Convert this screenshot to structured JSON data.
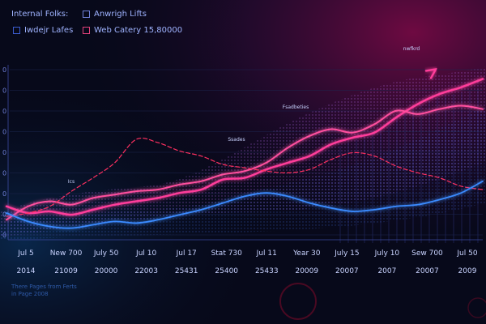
{
  "legend": [
    {
      "label": "Internal Folks:",
      "color": "#8fa6ff"
    },
    {
      "label": "Anwrigh Lifts",
      "color": "#8fa6ff"
    },
    {
      "label": "Iwdejr Lafes",
      "color": "#3c5cd0"
    },
    {
      "label": "Web Catery 15,80000",
      "color": "#e0407a"
    }
  ],
  "annotations": [
    "nwfkrd",
    "Fsadbeties",
    "Ssades",
    "Ics"
  ],
  "footnote": [
    "There Pages from Ferts",
    "in Page 2008"
  ],
  "colors": {
    "background": "#07091a",
    "accent_line": "#ff3d9a",
    "blue_line": "#3a8bff",
    "dashed_line": "#ff3060"
  },
  "chart_data": {
    "type": "line",
    "xlabel": "",
    "ylabel": "",
    "x_tick_labels": [
      {
        "month": "Jul 5",
        "year": "2014"
      },
      {
        "month": "New 700",
        "year": "21009"
      },
      {
        "month": "July 50",
        "year": "20000"
      },
      {
        "month": "Jul 10",
        "year": "22003"
      },
      {
        "month": "Jul 17",
        "year": "25431"
      },
      {
        "month": "Stat 730",
        "year": "25400"
      },
      {
        "month": "Jul 11",
        "year": "25433"
      },
      {
        "month": "Year 30",
        "year": "20009"
      },
      {
        "month": "July 15",
        "year": "20007"
      },
      {
        "month": "July 10",
        "year": "2007"
      },
      {
        "month": "Sew 700",
        "year": "20007"
      },
      {
        "month": "Jul 50",
        "year": "2009"
      }
    ],
    "y_tick_labels": [
      "0",
      "0",
      "0",
      "0",
      "0",
      "0",
      "0",
      "0",
      "0"
    ],
    "ylim": [
      0,
      100
    ],
    "xlim": [
      0,
      11
    ],
    "series": [
      {
        "x": [
          0,
          0.5,
          1,
          1.5,
          2,
          2.5,
          3,
          3.5,
          4,
          4.5,
          5,
          5.5,
          6,
          6.5,
          7,
          7.5,
          8,
          8.5,
          9,
          9.5,
          10,
          10.5,
          11
        ],
        "values": [
          18,
          14,
          15,
          13,
          16,
          19,
          21,
          23,
          26,
          28,
          34,
          35,
          40,
          44,
          48,
          55,
          59,
          62,
          71,
          79,
          85,
          89,
          94
        ],
        "color": "#ff3d9a",
        "style": "solid",
        "width": 2.5
      },
      {
        "x": [
          0,
          0.5,
          1,
          1.5,
          2,
          2.5,
          3,
          3.5,
          4,
          4.5,
          5,
          5.5,
          6,
          6.5,
          7,
          7.5,
          8,
          8.5,
          9,
          9.5,
          10,
          10.5,
          11
        ],
        "values": [
          10,
          18,
          21,
          19,
          23,
          25,
          27,
          28,
          31,
          33,
          37,
          39,
          44,
          53,
          60,
          64,
          62,
          67,
          75,
          73,
          76,
          78,
          76
        ],
        "color": "#ff4f9e",
        "style": "solid",
        "width": 2
      },
      {
        "x": [
          0,
          0.5,
          1,
          1.5,
          2,
          2.5,
          3,
          3.5,
          4,
          4.5,
          5,
          5.5,
          6,
          6.5,
          7,
          7.5,
          8,
          8.5,
          9,
          9.5,
          10,
          10.5,
          11
        ],
        "values": [
          12,
          14,
          18,
          27,
          35,
          44,
          58,
          56,
          51,
          48,
          43,
          41,
          39,
          38,
          40,
          46,
          50,
          48,
          42,
          38,
          35,
          30,
          28
        ],
        "color": "#ff3060",
        "style": "dashed",
        "width": 1.2
      },
      {
        "x": [
          0,
          0.5,
          1,
          1.5,
          2,
          2.5,
          3,
          3.5,
          4,
          4.5,
          5,
          5.5,
          6,
          6.5,
          7,
          7.5,
          8,
          8.5,
          9,
          9.5,
          10,
          10.5,
          11
        ],
        "values": [
          14,
          9,
          6,
          5,
          7,
          9,
          8,
          10,
          13,
          16,
          20,
          24,
          26,
          24,
          20,
          17,
          15,
          16,
          18,
          19,
          22,
          26,
          33
        ],
        "color": "#3a8bff",
        "style": "solid",
        "width": 1.8
      }
    ]
  }
}
